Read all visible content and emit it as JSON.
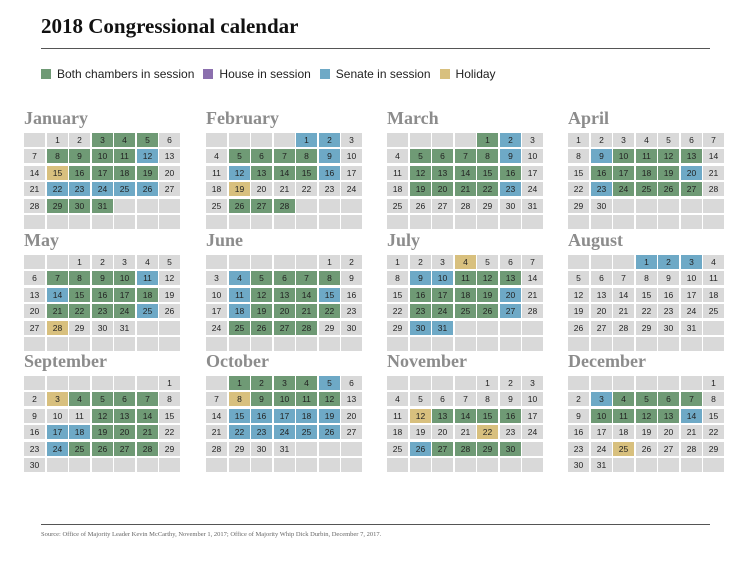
{
  "title": "2018 Congressional calendar",
  "legend": [
    {
      "label": "Both chambers in session",
      "color": "#6f9a75"
    },
    {
      "label": "House in session",
      "color": "#8b6fae"
    },
    {
      "label": "Senate in session",
      "color": "#6ea9c6"
    },
    {
      "label": "Holiday",
      "color": "#d8c07e"
    }
  ],
  "months": [
    {
      "name": "January",
      "start_weekday": 1,
      "days": 31,
      "both": [
        3,
        4,
        5,
        8,
        9,
        10,
        11,
        16,
        17,
        18,
        19,
        29,
        30,
        31
      ],
      "house": [],
      "senate": [
        12,
        22,
        23,
        24,
        25,
        26
      ],
      "holiday": [
        15
      ]
    },
    {
      "name": "February",
      "start_weekday": 4,
      "days": 28,
      "both": [
        5,
        6,
        7,
        8,
        13,
        14,
        15,
        26,
        27,
        28
      ],
      "house": [],
      "senate": [
        1,
        2,
        9,
        12,
        16
      ],
      "holiday": [
        19
      ]
    },
    {
      "name": "March",
      "start_weekday": 4,
      "days": 31,
      "both": [
        1,
        5,
        6,
        7,
        8,
        12,
        13,
        14,
        15,
        16,
        19,
        20,
        21,
        22
      ],
      "house": [],
      "senate": [
        2,
        9,
        23
      ],
      "holiday": []
    },
    {
      "name": "April",
      "start_weekday": 0,
      "days": 30,
      "both": [
        10,
        11,
        12,
        13,
        16,
        17,
        18,
        19,
        24,
        25,
        26,
        27
      ],
      "house": [],
      "senate": [
        9,
        20,
        23
      ],
      "holiday": []
    },
    {
      "name": "May",
      "start_weekday": 2,
      "days": 31,
      "both": [
        7,
        8,
        9,
        10,
        15,
        16,
        17,
        18,
        21,
        22,
        23,
        24
      ],
      "house": [],
      "senate": [
        11,
        14,
        25
      ],
      "holiday": [
        28
      ]
    },
    {
      "name": "June",
      "start_weekday": 5,
      "days": 30,
      "both": [
        5,
        6,
        7,
        8,
        12,
        13,
        14,
        19,
        20,
        21,
        22,
        25,
        26,
        27,
        28
      ],
      "house": [],
      "senate": [
        4,
        11,
        15,
        18
      ],
      "holiday": []
    },
    {
      "name": "July",
      "start_weekday": 0,
      "days": 31,
      "both": [
        11,
        12,
        13,
        16,
        17,
        18,
        19,
        23,
        24,
        25,
        26
      ],
      "house": [],
      "senate": [
        9,
        10,
        20,
        27,
        30,
        31
      ],
      "holiday": [
        4
      ]
    },
    {
      "name": "August",
      "start_weekday": 3,
      "days": 31,
      "both": [],
      "house": [],
      "senate": [
        1,
        2,
        3
      ],
      "holiday": []
    },
    {
      "name": "September",
      "start_weekday": 6,
      "days": 30,
      "both": [
        4,
        5,
        6,
        7,
        12,
        13,
        14,
        19,
        20,
        21,
        25,
        26,
        27,
        28
      ],
      "house": [],
      "senate": [
        17,
        18,
        24
      ],
      "holiday": [
        3
      ]
    },
    {
      "name": "October",
      "start_weekday": 1,
      "days": 31,
      "both": [
        1,
        2,
        3,
        4,
        9,
        10,
        11,
        12
      ],
      "house": [],
      "senate": [
        5,
        15,
        16,
        17,
        18,
        19,
        22,
        23,
        24,
        25,
        26
      ],
      "holiday": [
        8
      ]
    },
    {
      "name": "November",
      "start_weekday": 4,
      "days": 30,
      "both": [
        13,
        14,
        15,
        16,
        27,
        28,
        29,
        30
      ],
      "house": [],
      "senate": [
        26
      ],
      "holiday": [
        12,
        22
      ]
    },
    {
      "name": "December",
      "start_weekday": 6,
      "days": 31,
      "both": [
        4,
        5,
        6,
        7,
        10,
        11,
        12,
        13
      ],
      "house": [],
      "senate": [
        3,
        14
      ],
      "holiday": [
        25
      ]
    }
  ],
  "source": "Source: Office of Majority Leader Kevin McCarthy, November 1, 2017; Office of Majority Whip Dick Durbin, December 7, 2017."
}
